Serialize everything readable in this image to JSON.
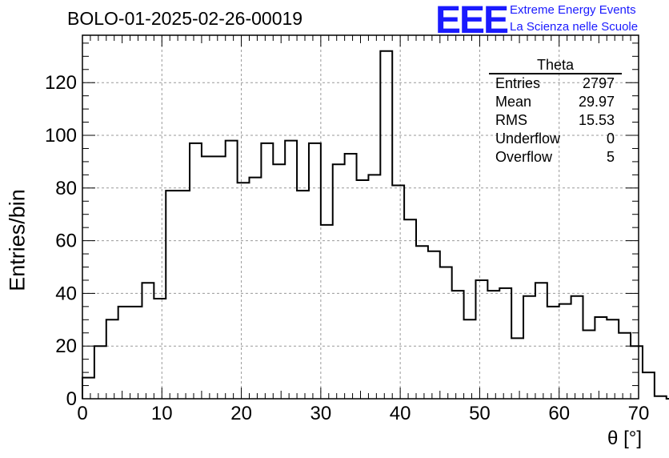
{
  "header": {
    "title": "BOLO-01-2025-02-26-00019",
    "logo_mark": "EEE",
    "logo_line1": "Extreme Energy Events",
    "logo_line2": "La Scienza nelle Scuole"
  },
  "stats": {
    "name": "Theta",
    "rows": [
      {
        "label": "Entries",
        "value": "2797"
      },
      {
        "label": "Mean",
        "value": "29.97"
      },
      {
        "label": "RMS",
        "value": "15.53"
      },
      {
        "label": "Underflow",
        "value": "0"
      },
      {
        "label": "Overflow",
        "value": "5"
      }
    ]
  },
  "chart_data": {
    "type": "bar",
    "histogram": true,
    "xlabel": "θ [°]",
    "ylabel": "Entries/bin",
    "xlim": [
      0,
      70
    ],
    "ylim": [
      0,
      138
    ],
    "x_ticks": [
      0,
      10,
      20,
      30,
      40,
      50,
      60,
      70
    ],
    "y_ticks": [
      0,
      20,
      40,
      60,
      80,
      100,
      120
    ],
    "grid": true,
    "legend": "top-right",
    "bin_width": 1.5,
    "bin_edges_start": 0,
    "values": [
      8,
      20,
      30,
      35,
      35,
      44,
      38,
      79,
      79,
      97,
      92,
      92,
      98,
      82,
      84,
      97,
      89,
      98,
      79,
      97,
      66,
      89,
      93,
      83,
      85,
      132,
      81,
      68,
      58,
      56,
      50,
      41,
      30,
      45,
      41,
      42,
      23,
      39,
      44,
      35,
      36,
      39,
      26,
      31,
      30,
      25,
      20,
      10,
      1,
      0
    ],
    "line_color": "#000000",
    "grid_color": "#999999"
  }
}
